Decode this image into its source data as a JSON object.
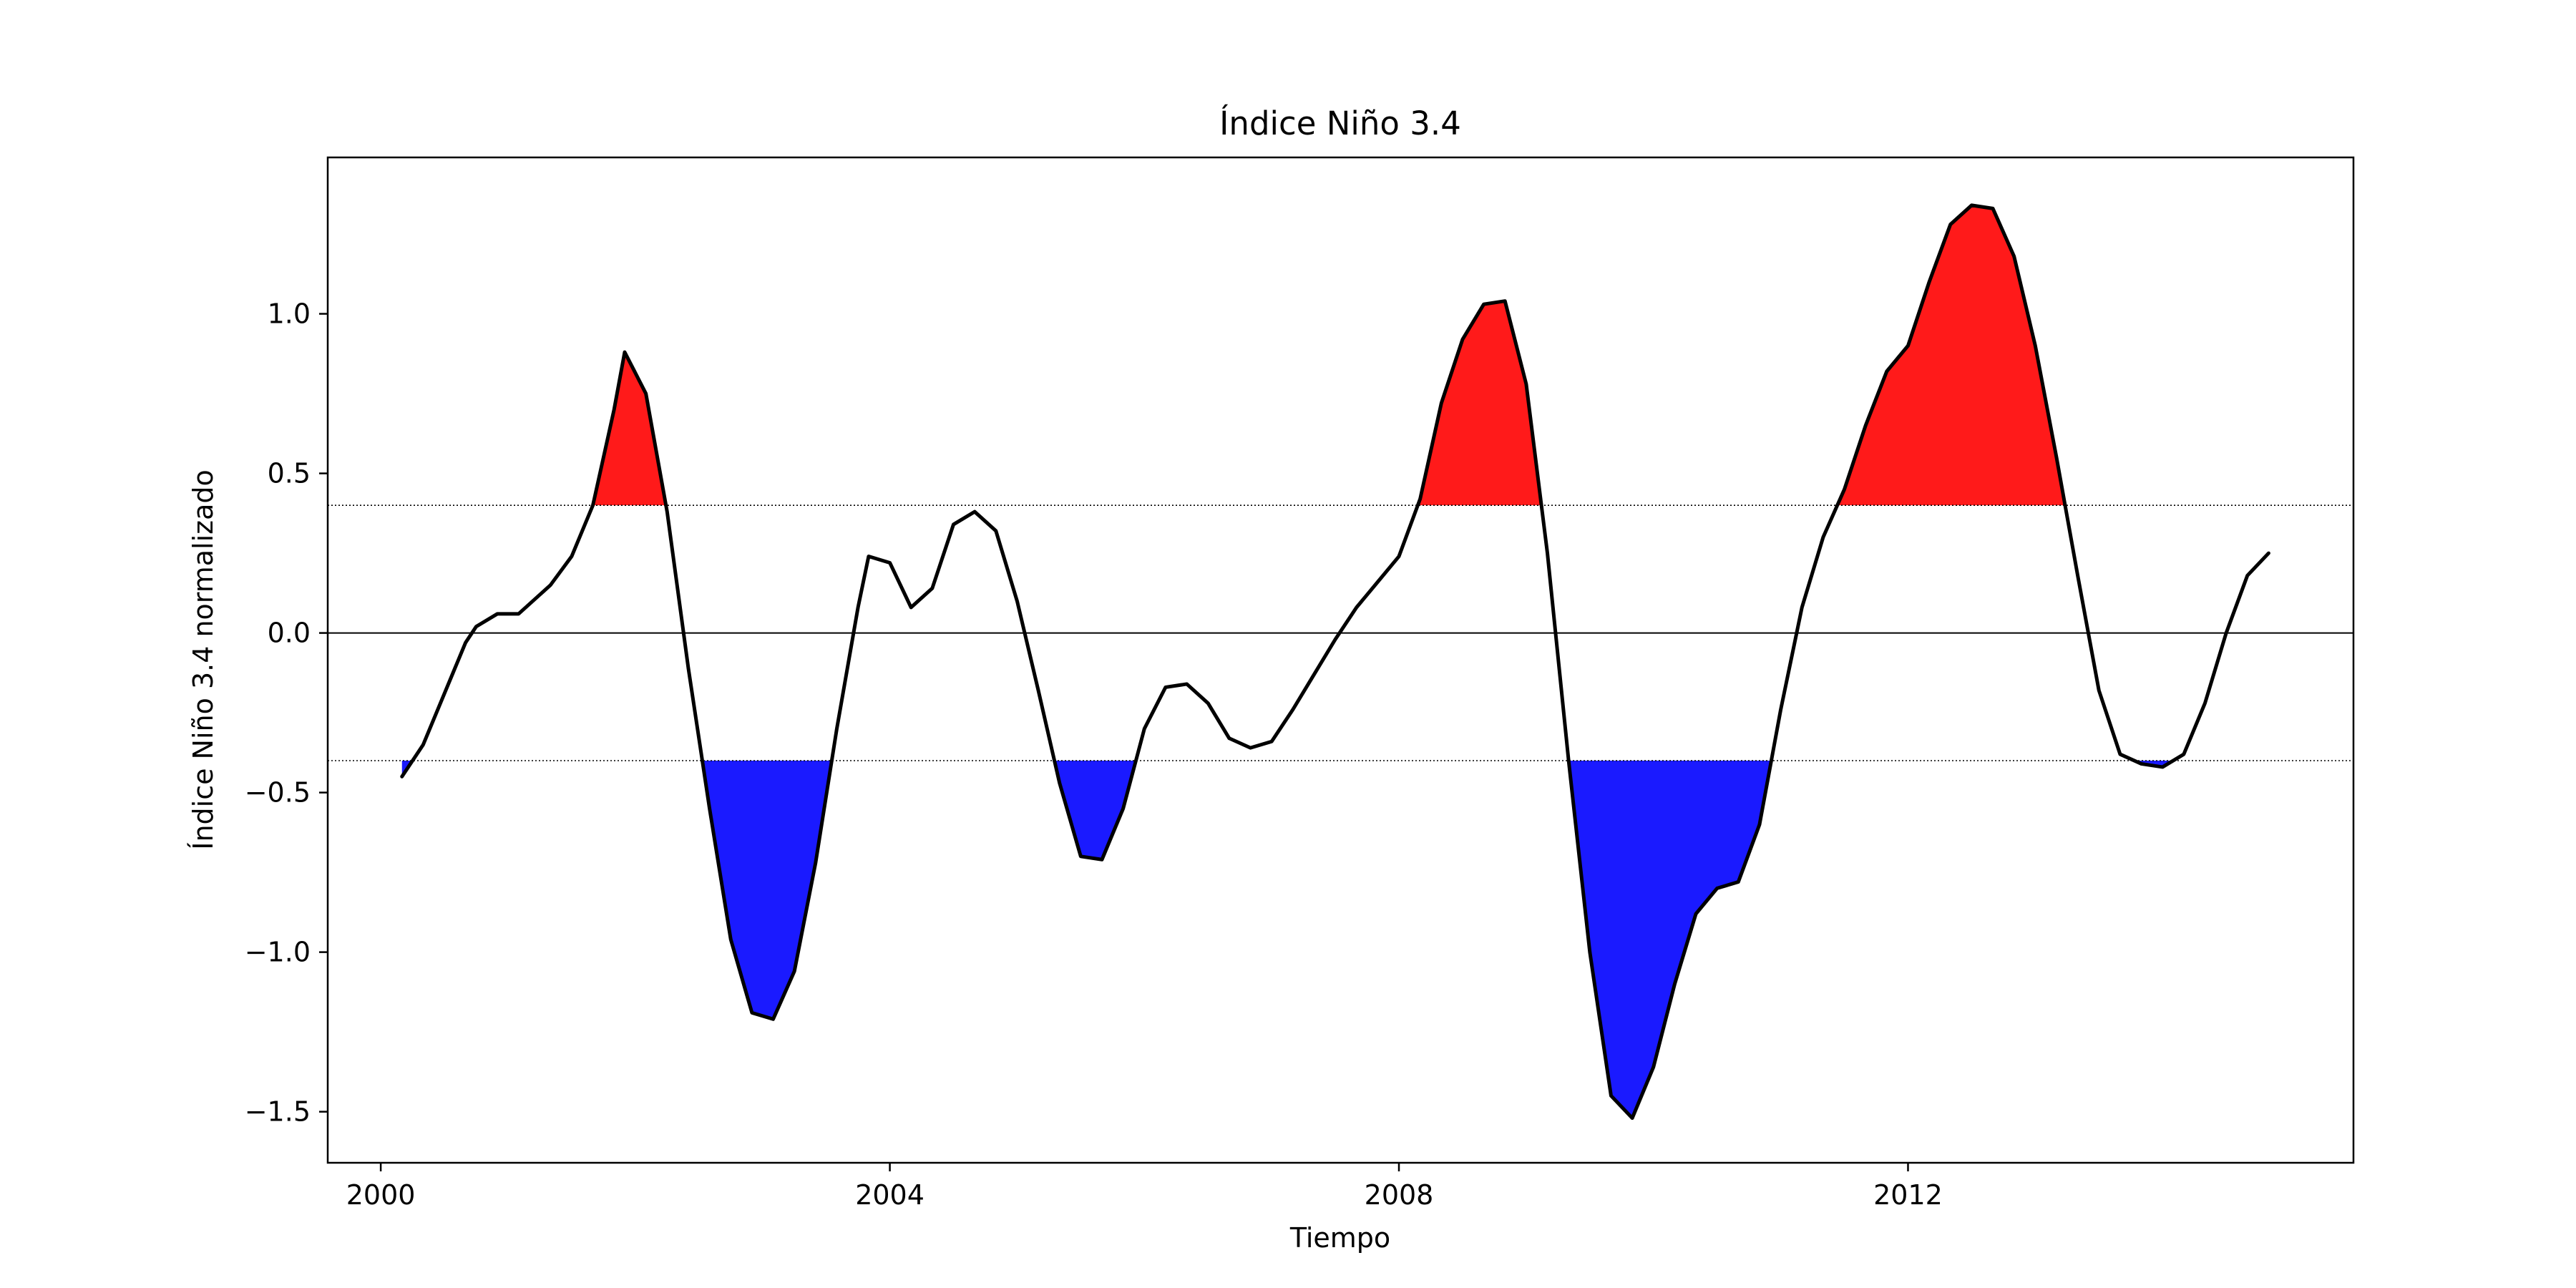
{
  "chart_data": {
    "type": "line",
    "title": "Índice Niño 3.4",
    "xlabel": "Tiempo",
    "ylabel": "Índice Niño 3.4 normalizado",
    "xlim": [
      "1999-08-01",
      "2015-07-01"
    ],
    "ylim": [
      -1.66,
      1.49
    ],
    "x_ticks": [
      {
        "date": "2000-01-01",
        "label": "2000"
      },
      {
        "date": "2004-01-01",
        "label": "2004"
      },
      {
        "date": "2008-01-01",
        "label": "2008"
      },
      {
        "date": "2012-01-01",
        "label": "2012"
      }
    ],
    "y_ticks": [
      {
        "value": 1.0,
        "label": "1.0"
      },
      {
        "value": 0.5,
        "label": "0.5"
      },
      {
        "value": 0.0,
        "label": "0.0"
      },
      {
        "value": -0.5,
        "label": "−0.5"
      },
      {
        "value": -1.0,
        "label": "−1.0"
      },
      {
        "value": -1.5,
        "label": "−1.5"
      }
    ],
    "thresholds": [
      0.4,
      -0.4
    ],
    "zero_line": 0,
    "grid": false,
    "colors": {
      "line": "#000000",
      "above": "#ff1a1a",
      "below": "#1a1aff",
      "threshold": "#000000"
    },
    "series": [
      {
        "x": [
          "2000-03-01",
          "2000-05-01",
          "2000-07-01",
          "2000-09-01",
          "2000-10-01",
          "2000-12-01",
          "2001-02-01",
          "2001-04-01",
          "2001-05-01",
          "2001-07-01",
          "2001-09-01",
          "2001-11-01",
          "2001-12-01",
          "2002-02-01",
          "2002-04-01",
          "2002-06-01",
          "2002-08-01",
          "2002-10-01",
          "2002-12-01",
          "2003-02-01",
          "2003-04-01",
          "2003-06-01",
          "2003-08-01",
          "2003-10-01",
          "2003-11-01",
          "2004-01-01",
          "2004-03-01",
          "2004-05-01",
          "2004-07-01",
          "2004-09-01",
          "2004-11-01",
          "2005-01-01",
          "2005-03-01",
          "2005-05-01",
          "2005-07-01",
          "2005-09-01",
          "2005-11-01",
          "2006-01-01",
          "2006-03-01",
          "2006-05-01",
          "2006-07-01",
          "2006-09-01",
          "2006-11-01",
          "2007-01-01",
          "2007-03-01",
          "2007-05-01",
          "2007-07-01",
          "2007-09-01",
          "2007-11-01",
          "2008-01-01",
          "2008-03-01",
          "2008-05-01",
          "2008-07-01",
          "2008-09-01",
          "2008-11-01",
          "2009-01-01",
          "2009-03-01",
          "2009-05-01",
          "2009-07-01",
          "2009-09-01",
          "2009-11-01",
          "2010-01-01",
          "2010-03-01",
          "2010-05-01",
          "2010-07-01",
          "2010-09-01",
          "2010-11-01",
          "2011-01-01",
          "2011-03-01",
          "2011-05-01",
          "2011-07-01",
          "2011-09-01",
          "2011-11-01",
          "2012-01-01",
          "2012-03-01",
          "2012-05-01",
          "2012-07-01",
          "2012-09-01",
          "2012-11-01",
          "2013-01-01",
          "2013-03-01",
          "2013-05-01",
          "2013-07-01",
          "2013-09-01",
          "2013-11-01",
          "2014-01-01",
          "2014-03-01",
          "2014-05-01",
          "2014-07-01",
          "2014-09-01",
          "2014-11-01"
        ],
        "y": [
          -0.45,
          -0.35,
          -0.19,
          -0.03,
          0.02,
          0.06,
          0.06,
          0.12,
          0.15,
          0.24,
          0.4,
          0.7,
          0.88,
          0.75,
          0.38,
          -0.11,
          -0.55,
          -0.96,
          -1.19,
          -1.21,
          -1.06,
          -0.72,
          -0.3,
          0.08,
          0.24,
          0.22,
          0.08,
          0.14,
          0.34,
          0.38,
          0.32,
          0.1,
          -0.18,
          -0.47,
          -0.7,
          -0.71,
          -0.55,
          -0.3,
          -0.17,
          -0.16,
          -0.22,
          -0.33,
          -0.36,
          -0.34,
          -0.24,
          -0.13,
          -0.02,
          0.08,
          0.16,
          0.24,
          0.42,
          0.72,
          0.92,
          1.03,
          1.04,
          0.78,
          0.25,
          -0.4,
          -1.0,
          -1.45,
          -1.52,
          -1.36,
          -1.1,
          -0.88,
          -0.8,
          -0.78,
          -0.6,
          -0.24,
          0.08,
          0.3,
          0.45,
          0.65,
          0.82,
          0.9,
          1.1,
          1.28,
          1.34,
          1.33,
          1.18,
          0.9,
          0.55,
          0.18,
          -0.18,
          -0.38,
          -0.41,
          -0.42,
          -0.38,
          -0.22,
          0.0,
          0.18,
          0.25
        ]
      }
    ]
  }
}
